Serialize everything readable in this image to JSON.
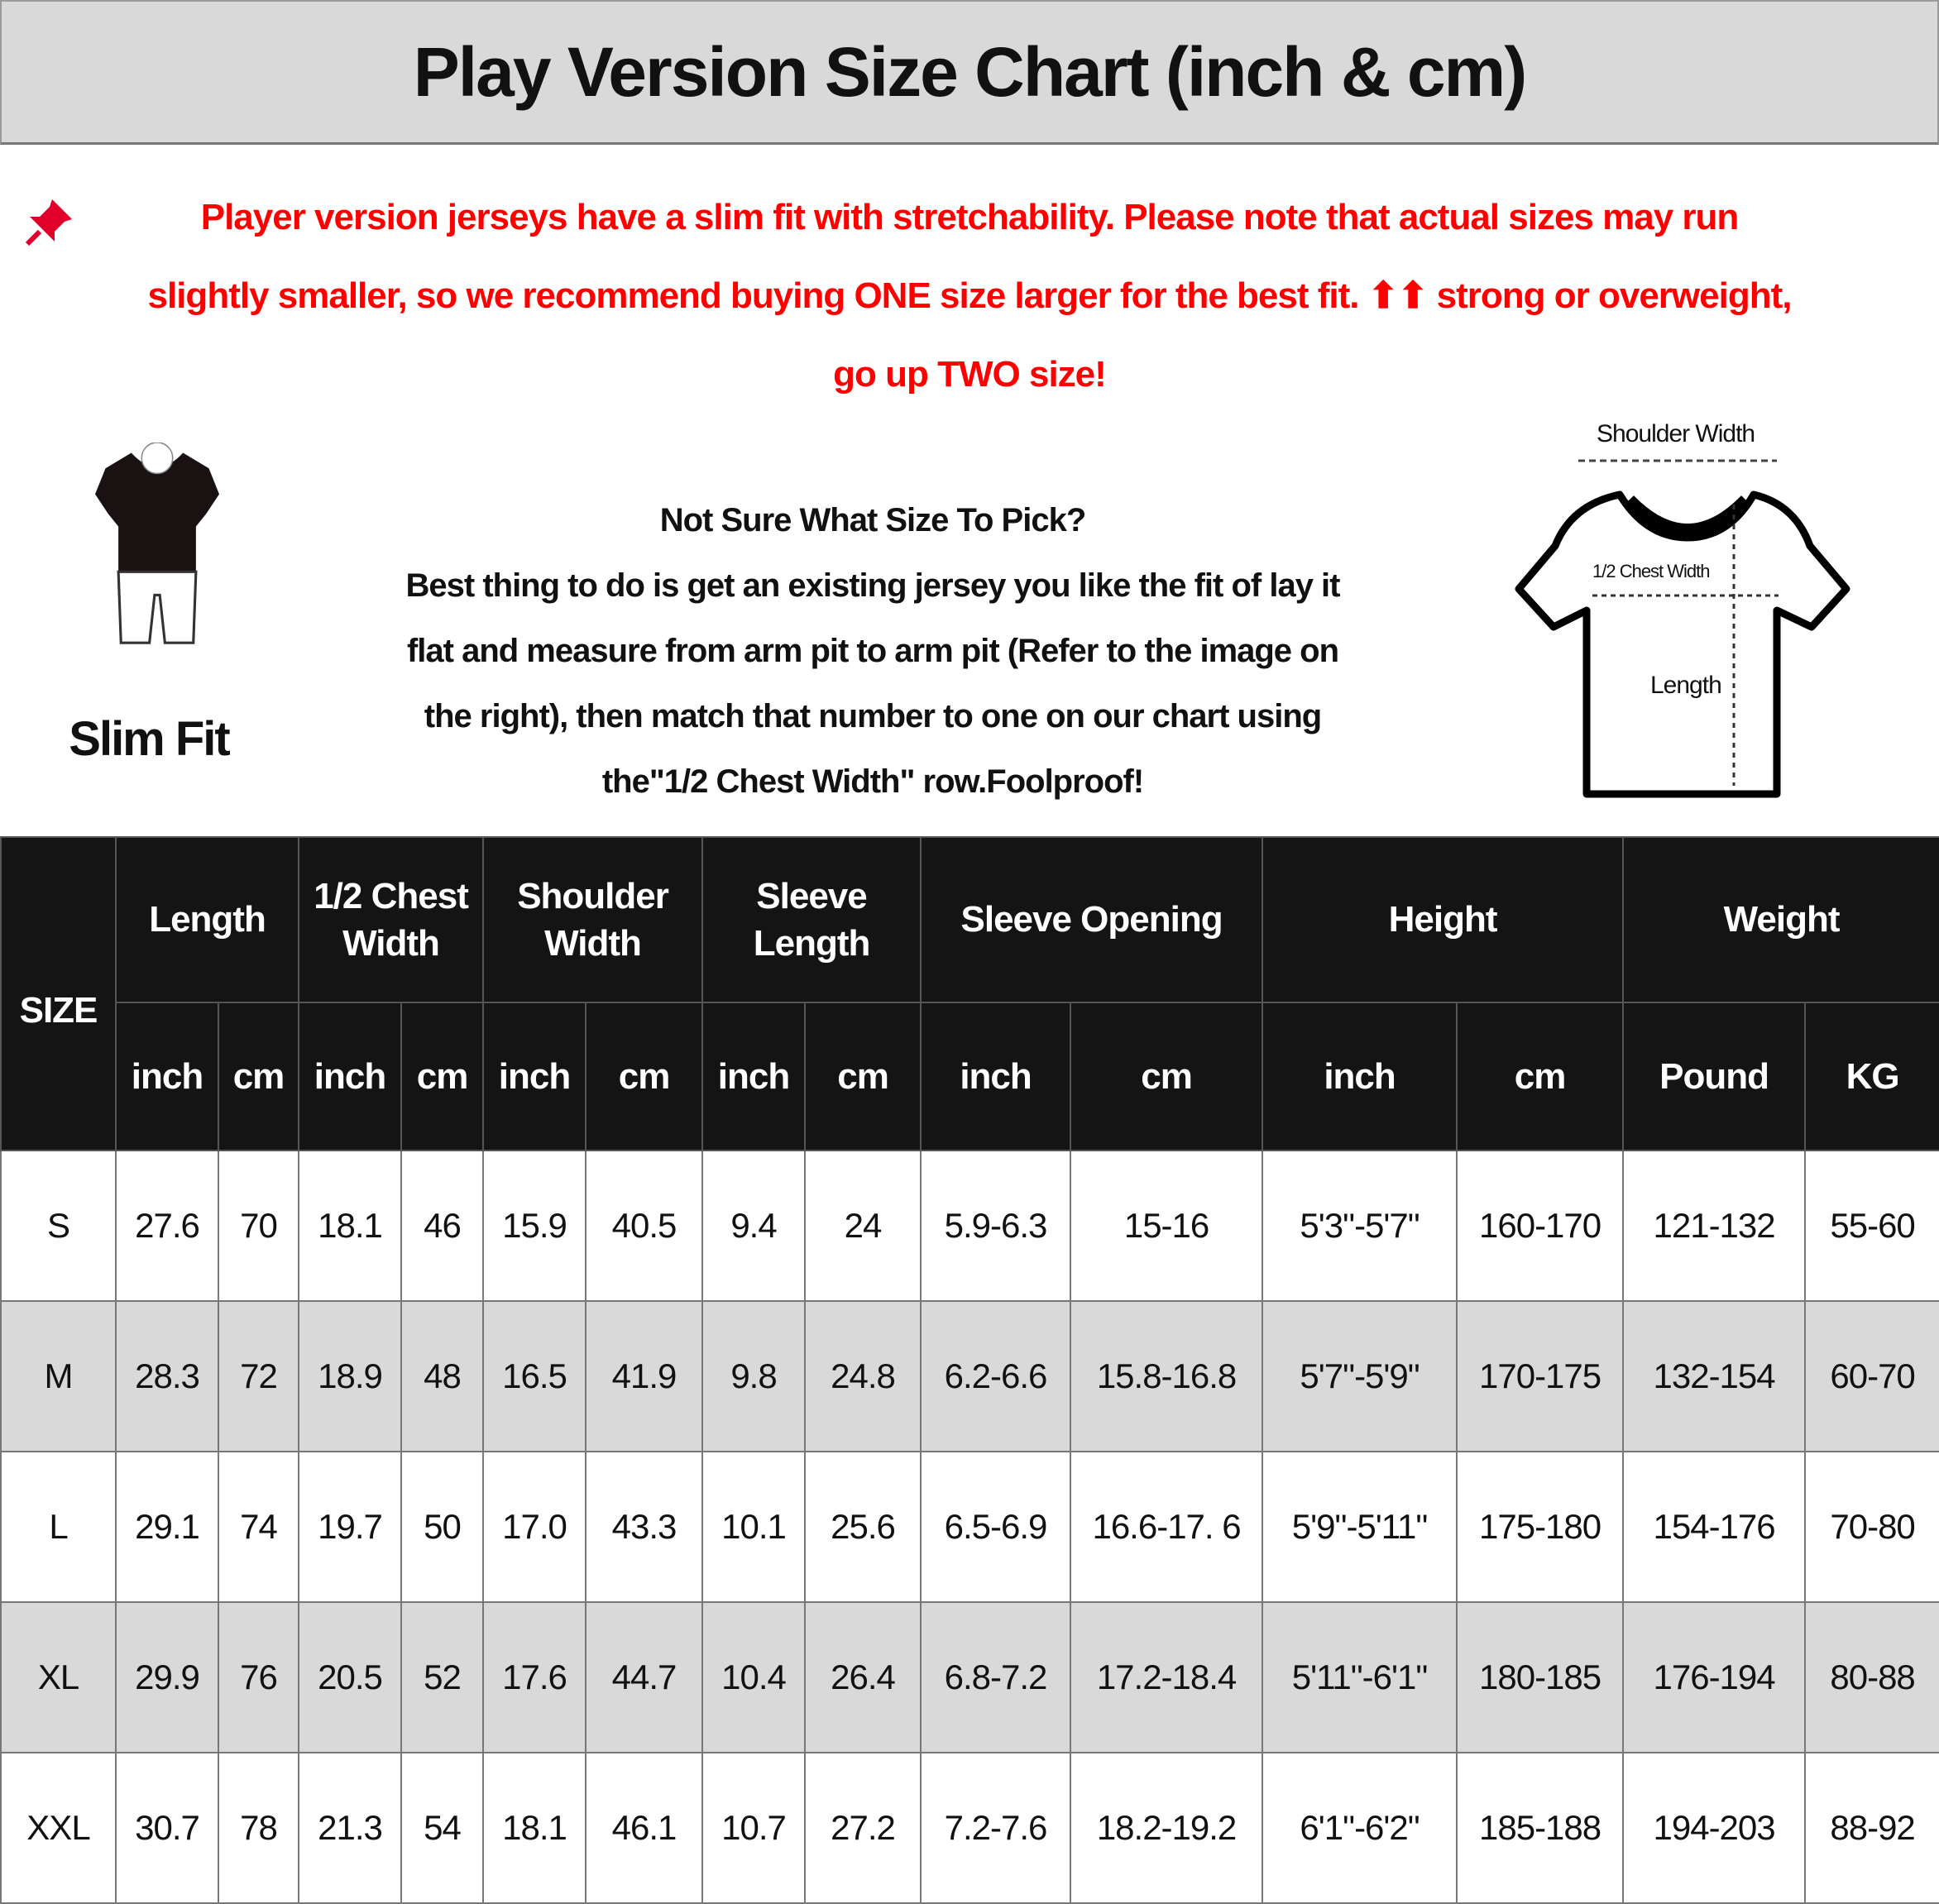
{
  "title": "Play Version Size Chart (inch & cm)",
  "notice": {
    "icon": "pushpin-icon",
    "color": "#ff0000",
    "lines": [
      "Player version jerseys have a slim fit with stretchability. Please note that actual sizes may run",
      "slightly smaller, so we recommend buying ONE size larger for the best fit. ⬆⬆ strong or overweight,",
      "go up TWO size!"
    ]
  },
  "fit": {
    "label": "Slim Fit"
  },
  "advice": {
    "lines": [
      "Not Sure What Size To Pick?",
      "Best thing to do is get an existing jersey you like the fit of lay it",
      "flat and measure from arm pit to arm pit (Refer to the image on",
      "the right), then match that number to one on our chart using",
      "the\"1/2 Chest Width\" row.Foolproof!"
    ]
  },
  "diagram": {
    "shoulder": "Shoulder Width",
    "chest": "1/2 Chest Width",
    "length": "Length"
  },
  "table": {
    "size_header": "SIZE",
    "groups": [
      "Length",
      "1/2 Chest\nWidth",
      "Shoulder\nWidth",
      "Sleeve\nLength",
      "Sleeve Opening",
      "Height",
      "Weight"
    ],
    "units": [
      "inch",
      "cm",
      "inch",
      "cm",
      "inch",
      "cm",
      "inch",
      "cm",
      "inch",
      "cm",
      "inch",
      "cm",
      "Pound",
      "KG"
    ],
    "rows": [
      [
        "S",
        "27.6",
        "70",
        "18.1",
        "46",
        "15.9",
        "40.5",
        "9.4",
        "24",
        "5.9-6.3",
        "15-16",
        "5'3\"-5'7\"",
        "160-170",
        "121-132",
        "55-60"
      ],
      [
        "M",
        "28.3",
        "72",
        "18.9",
        "48",
        "16.5",
        "41.9",
        "9.8",
        "24.8",
        "6.2-6.6",
        "15.8-16.8",
        "5'7\"-5'9\"",
        "170-175",
        "132-154",
        "60-70"
      ],
      [
        "L",
        "29.1",
        "74",
        "19.7",
        "50",
        "17.0",
        "43.3",
        "10.1",
        "25.6",
        "6.5-6.9",
        "16.6-17. 6",
        "5'9\"-5'11\"",
        "175-180",
        "154-176",
        "70-80"
      ],
      [
        "XL",
        "29.9",
        "76",
        "20.5",
        "52",
        "17.6",
        "44.7",
        "10.4",
        "26.4",
        "6.8-7.2",
        "17.2-18.4",
        "5'11\"-6'1\"",
        "180-185",
        "176-194",
        "80-88"
      ],
      [
        "XXL",
        "30.7",
        "78",
        "21.3",
        "54",
        "18.1",
        "46.1",
        "10.7",
        "27.2",
        "7.2-7.6",
        "18.2-19.2",
        "6'1\"-6'2\"",
        "185-188",
        "194-203",
        "88-92"
      ]
    ]
  }
}
